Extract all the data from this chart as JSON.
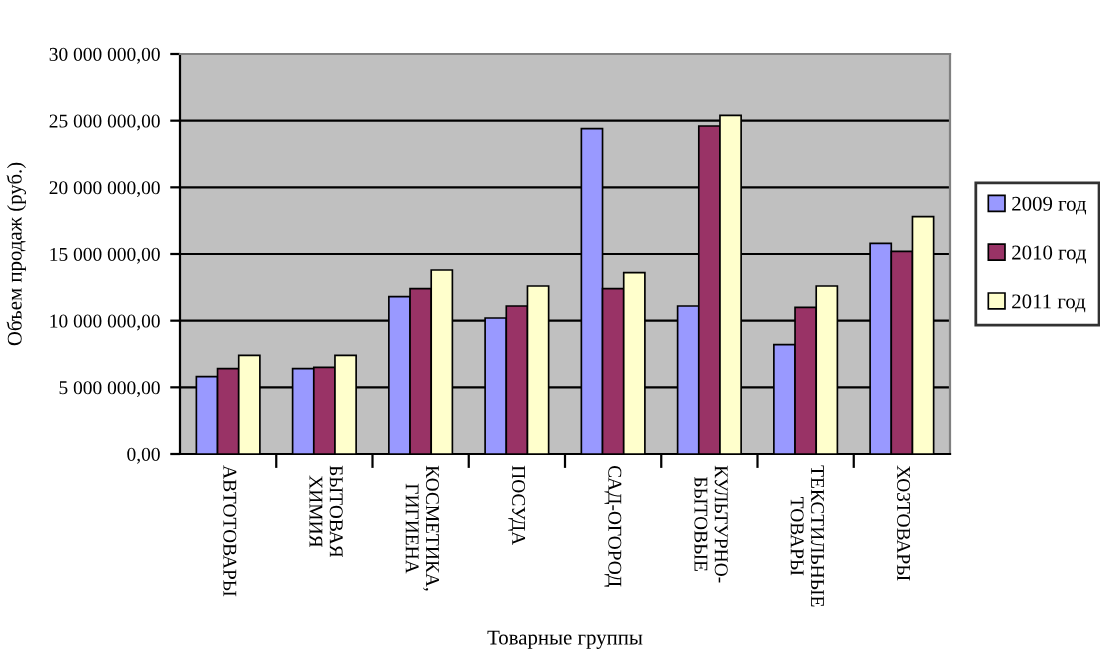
{
  "chart_data": {
    "type": "bar",
    "xlabel": "Товарные группы",
    "ylabel": "Объем продаж (руб.)",
    "categories": [
      "АВТОТОВАРЫ",
      "БЫТОВАЯ\nХИМИЯ",
      "КОСМЕТИКА,\nГИГИЕНА",
      "ПОСУДА",
      "САД-ОГОРОД",
      "КУЛЬТУРНО-\nБЫТОВЫЕ",
      "ТЕКСТИЛЬНЫЕ\nТОВАРЫ",
      "ХОЗТОВАРЫ"
    ],
    "series": [
      {
        "name": "2009 год",
        "color": "#9999ff",
        "values": [
          5800000,
          6400000,
          11800000,
          10200000,
          24400000,
          11100000,
          8200000,
          15800000
        ]
      },
      {
        "name": "2010 год",
        "color": "#993366",
        "values": [
          6400000,
          6500000,
          12400000,
          11100000,
          12400000,
          24600000,
          11000000,
          15200000
        ]
      },
      {
        "name": "2011 год",
        "color": "#ffffcc",
        "values": [
          7400000,
          7400000,
          13800000,
          12600000,
          13600000,
          25400000,
          12600000,
          17800000
        ]
      }
    ],
    "ylim": [
      0,
      30000000
    ],
    "yticks": [
      {
        "value": 0,
        "label": "0,00"
      },
      {
        "value": 5000000,
        "label": "5 000 000,00"
      },
      {
        "value": 10000000,
        "label": "10 000 000,00"
      },
      {
        "value": 15000000,
        "label": "15 000 000,00"
      },
      {
        "value": 20000000,
        "label": "20 000 000,00"
      },
      {
        "value": 25000000,
        "label": "25 000 000,00"
      },
      {
        "value": 30000000,
        "label": "30 000 000,00"
      }
    ],
    "grid": "y",
    "legend": "right"
  }
}
